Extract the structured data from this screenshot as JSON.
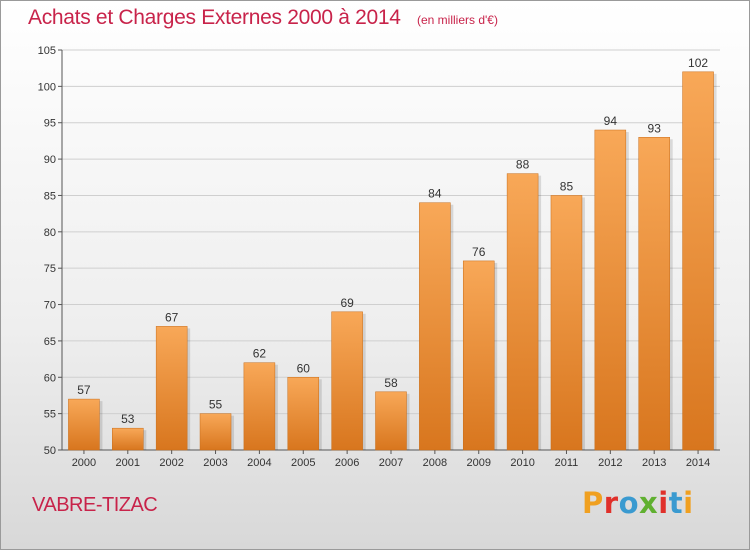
{
  "header": {
    "title": "Achats et Charges Externes 2000 à 2014",
    "subtitle": "(en milliers d'€)"
  },
  "footer": {
    "commune": "VABRE-TIZAC",
    "logo_text": "Proxiti",
    "logo_colors": [
      "#f0a020",
      "#e0302a",
      "#3a9ad0",
      "#60b030",
      "#e0302a",
      "#3a9ad0",
      "#f0a020"
    ]
  },
  "colors": {
    "title": "#c8234a",
    "bar_light": "#f7a85a",
    "bar_dark": "#d9781f"
  },
  "chart_data": {
    "type": "bar",
    "categories": [
      "2000",
      "2001",
      "2002",
      "2003",
      "2004",
      "2005",
      "2006",
      "2007",
      "2008",
      "2009",
      "2010",
      "2011",
      "2012",
      "2013",
      "2014"
    ],
    "values": [
      57,
      53,
      67,
      55,
      62,
      60,
      69,
      58,
      84,
      76,
      88,
      85,
      94,
      93,
      102
    ],
    "value_labels": [
      "57",
      "53",
      "67",
      "55",
      "62",
      "60",
      "69",
      "58",
      "84",
      "76",
      "88",
      "85",
      "94",
      "93",
      "102"
    ],
    "yticks": [
      50,
      55,
      60,
      65,
      70,
      75,
      80,
      85,
      90,
      95,
      100,
      105
    ],
    "ylim": [
      50,
      105
    ],
    "grid": true,
    "legend": "none"
  }
}
